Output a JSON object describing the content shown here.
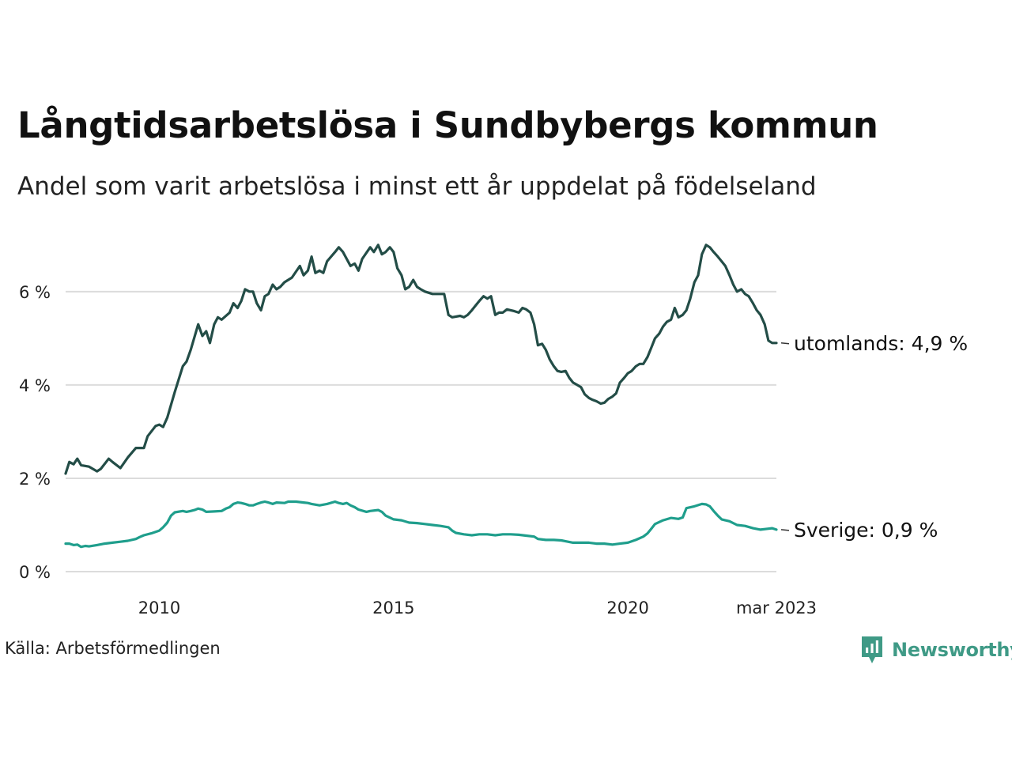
{
  "title": "Långtidsarbetslösa i Sundbybergs kommun",
  "subtitle": "Andel som varit arbetslösa i minst ett år uppdelat på födelseland",
  "source": "Källa: Arbetsförmedlingen",
  "brand": {
    "name": "Newsworthy",
    "logo_icon": "newsworthy-bar-chart-icon",
    "color": "#3f9a86"
  },
  "chart_data": {
    "type": "line",
    "x_unit": "year",
    "y_unit": "%",
    "ylim": [
      0,
      7.2
    ],
    "xlim": [
      2008.0,
      2023.17
    ],
    "y_ticks": [
      0,
      2,
      4,
      6
    ],
    "y_tick_labels": [
      "0 %",
      "2 %",
      "4 %",
      "6 %"
    ],
    "x_ticks": [
      2010,
      2015,
      2020,
      2023.17
    ],
    "x_tick_labels": [
      "2010",
      "2015",
      "2020",
      "mar 2023"
    ],
    "grid": "horizontal",
    "legend": "direct labels at line ends",
    "series": [
      {
        "name": "utomlands",
        "end_label": "utomlands: 4,9 %",
        "color": "#234d47",
        "points": [
          [
            2008.0,
            2.1
          ],
          [
            2008.08,
            2.35
          ],
          [
            2008.17,
            2.3
          ],
          [
            2008.25,
            2.42
          ],
          [
            2008.33,
            2.28
          ],
          [
            2008.5,
            2.25
          ],
          [
            2008.67,
            2.15
          ],
          [
            2008.75,
            2.2
          ],
          [
            2008.92,
            2.42
          ],
          [
            2009.0,
            2.35
          ],
          [
            2009.17,
            2.22
          ],
          [
            2009.33,
            2.45
          ],
          [
            2009.5,
            2.65
          ],
          [
            2009.67,
            2.65
          ],
          [
            2009.75,
            2.9
          ],
          [
            2009.92,
            3.12
          ],
          [
            2010.0,
            3.15
          ],
          [
            2010.08,
            3.1
          ],
          [
            2010.17,
            3.3
          ],
          [
            2010.33,
            3.85
          ],
          [
            2010.5,
            4.4
          ],
          [
            2010.58,
            4.5
          ],
          [
            2010.67,
            4.75
          ],
          [
            2010.83,
            5.3
          ],
          [
            2010.92,
            5.05
          ],
          [
            2011.0,
            5.15
          ],
          [
            2011.08,
            4.9
          ],
          [
            2011.17,
            5.3
          ],
          [
            2011.25,
            5.45
          ],
          [
            2011.33,
            5.4
          ],
          [
            2011.5,
            5.55
          ],
          [
            2011.58,
            5.75
          ],
          [
            2011.67,
            5.65
          ],
          [
            2011.75,
            5.8
          ],
          [
            2011.83,
            6.05
          ],
          [
            2011.92,
            6.0
          ],
          [
            2012.0,
            6.0
          ],
          [
            2012.08,
            5.75
          ],
          [
            2012.17,
            5.6
          ],
          [
            2012.25,
            5.9
          ],
          [
            2012.33,
            5.95
          ],
          [
            2012.42,
            6.15
          ],
          [
            2012.5,
            6.05
          ],
          [
            2012.58,
            6.1
          ],
          [
            2012.67,
            6.2
          ],
          [
            2012.83,
            6.3
          ],
          [
            2013.0,
            6.55
          ],
          [
            2013.08,
            6.35
          ],
          [
            2013.17,
            6.45
          ],
          [
            2013.25,
            6.75
          ],
          [
            2013.33,
            6.4
          ],
          [
            2013.42,
            6.45
          ],
          [
            2013.5,
            6.4
          ],
          [
            2013.58,
            6.65
          ],
          [
            2013.75,
            6.85
          ],
          [
            2013.83,
            6.95
          ],
          [
            2013.92,
            6.85
          ],
          [
            2014.08,
            6.55
          ],
          [
            2014.17,
            6.6
          ],
          [
            2014.25,
            6.45
          ],
          [
            2014.33,
            6.7
          ],
          [
            2014.5,
            6.95
          ],
          [
            2014.58,
            6.85
          ],
          [
            2014.67,
            7.0
          ],
          [
            2014.75,
            6.8
          ],
          [
            2014.83,
            6.85
          ],
          [
            2014.92,
            6.95
          ],
          [
            2015.0,
            6.85
          ],
          [
            2015.08,
            6.5
          ],
          [
            2015.17,
            6.35
          ],
          [
            2015.25,
            6.05
          ],
          [
            2015.33,
            6.1
          ],
          [
            2015.42,
            6.25
          ],
          [
            2015.5,
            6.1
          ],
          [
            2015.58,
            6.05
          ],
          [
            2015.67,
            6.0
          ],
          [
            2015.83,
            5.95
          ],
          [
            2016.0,
            5.95
          ],
          [
            2016.08,
            5.95
          ],
          [
            2016.17,
            5.5
          ],
          [
            2016.25,
            5.45
          ],
          [
            2016.42,
            5.48
          ],
          [
            2016.5,
            5.45
          ],
          [
            2016.58,
            5.5
          ],
          [
            2016.67,
            5.6
          ],
          [
            2016.75,
            5.7
          ],
          [
            2016.83,
            5.8
          ],
          [
            2016.92,
            5.9
          ],
          [
            2017.0,
            5.85
          ],
          [
            2017.08,
            5.9
          ],
          [
            2017.17,
            5.5
          ],
          [
            2017.25,
            5.55
          ],
          [
            2017.33,
            5.55
          ],
          [
            2017.42,
            5.62
          ],
          [
            2017.5,
            5.6
          ],
          [
            2017.58,
            5.58
          ],
          [
            2017.67,
            5.55
          ],
          [
            2017.75,
            5.65
          ],
          [
            2017.83,
            5.62
          ],
          [
            2017.92,
            5.55
          ],
          [
            2018.0,
            5.3
          ],
          [
            2018.08,
            4.85
          ],
          [
            2018.17,
            4.88
          ],
          [
            2018.25,
            4.75
          ],
          [
            2018.33,
            4.55
          ],
          [
            2018.42,
            4.4
          ],
          [
            2018.5,
            4.3
          ],
          [
            2018.58,
            4.28
          ],
          [
            2018.67,
            4.3
          ],
          [
            2018.75,
            4.15
          ],
          [
            2018.83,
            4.05
          ],
          [
            2018.92,
            4.0
          ],
          [
            2019.0,
            3.95
          ],
          [
            2019.08,
            3.8
          ],
          [
            2019.17,
            3.72
          ],
          [
            2019.25,
            3.68
          ],
          [
            2019.33,
            3.65
          ],
          [
            2019.42,
            3.6
          ],
          [
            2019.5,
            3.62
          ],
          [
            2019.58,
            3.7
          ],
          [
            2019.67,
            3.75
          ],
          [
            2019.75,
            3.82
          ],
          [
            2019.83,
            4.05
          ],
          [
            2019.92,
            4.15
          ],
          [
            2020.0,
            4.25
          ],
          [
            2020.08,
            4.3
          ],
          [
            2020.17,
            4.4
          ],
          [
            2020.25,
            4.45
          ],
          [
            2020.33,
            4.45
          ],
          [
            2020.42,
            4.6
          ],
          [
            2020.5,
            4.8
          ],
          [
            2020.58,
            5.0
          ],
          [
            2020.67,
            5.1
          ],
          [
            2020.75,
            5.25
          ],
          [
            2020.83,
            5.35
          ],
          [
            2020.92,
            5.4
          ],
          [
            2021.0,
            5.65
          ],
          [
            2021.08,
            5.45
          ],
          [
            2021.17,
            5.5
          ],
          [
            2021.25,
            5.6
          ],
          [
            2021.33,
            5.85
          ],
          [
            2021.42,
            6.2
          ],
          [
            2021.5,
            6.35
          ],
          [
            2021.58,
            6.8
          ],
          [
            2021.67,
            7.0
          ],
          [
            2021.75,
            6.95
          ],
          [
            2021.83,
            6.85
          ],
          [
            2021.92,
            6.75
          ],
          [
            2022.0,
            6.65
          ],
          [
            2022.08,
            6.55
          ],
          [
            2022.17,
            6.35
          ],
          [
            2022.25,
            6.15
          ],
          [
            2022.33,
            6.0
          ],
          [
            2022.42,
            6.05
          ],
          [
            2022.5,
            5.95
          ],
          [
            2022.58,
            5.9
          ],
          [
            2022.67,
            5.75
          ],
          [
            2022.75,
            5.6
          ],
          [
            2022.83,
            5.5
          ],
          [
            2022.92,
            5.3
          ],
          [
            2023.0,
            4.95
          ],
          [
            2023.08,
            4.9
          ],
          [
            2023.17,
            4.9
          ]
        ]
      },
      {
        "name": "Sverige",
        "end_label": "Sverige: 0,9 %",
        "color": "#1f9e8c",
        "points": [
          [
            2008.0,
            0.6
          ],
          [
            2008.08,
            0.6
          ],
          [
            2008.17,
            0.57
          ],
          [
            2008.25,
            0.58
          ],
          [
            2008.33,
            0.53
          ],
          [
            2008.42,
            0.55
          ],
          [
            2008.5,
            0.54
          ],
          [
            2008.67,
            0.57
          ],
          [
            2008.83,
            0.6
          ],
          [
            2009.0,
            0.62
          ],
          [
            2009.17,
            0.64
          ],
          [
            2009.33,
            0.66
          ],
          [
            2009.5,
            0.7
          ],
          [
            2009.58,
            0.74
          ],
          [
            2009.67,
            0.78
          ],
          [
            2009.83,
            0.82
          ],
          [
            2010.0,
            0.88
          ],
          [
            2010.08,
            0.95
          ],
          [
            2010.17,
            1.05
          ],
          [
            2010.25,
            1.2
          ],
          [
            2010.33,
            1.27
          ],
          [
            2010.5,
            1.3
          ],
          [
            2010.58,
            1.28
          ],
          [
            2010.67,
            1.3
          ],
          [
            2010.75,
            1.32
          ],
          [
            2010.83,
            1.35
          ],
          [
            2010.92,
            1.33
          ],
          [
            2011.0,
            1.28
          ],
          [
            2011.17,
            1.29
          ],
          [
            2011.33,
            1.3
          ],
          [
            2011.42,
            1.35
          ],
          [
            2011.5,
            1.38
          ],
          [
            2011.58,
            1.45
          ],
          [
            2011.67,
            1.48
          ],
          [
            2011.75,
            1.47
          ],
          [
            2011.83,
            1.45
          ],
          [
            2011.92,
            1.42
          ],
          [
            2012.0,
            1.42
          ],
          [
            2012.08,
            1.45
          ],
          [
            2012.17,
            1.48
          ],
          [
            2012.25,
            1.5
          ],
          [
            2012.33,
            1.48
          ],
          [
            2012.42,
            1.45
          ],
          [
            2012.5,
            1.48
          ],
          [
            2012.67,
            1.47
          ],
          [
            2012.75,
            1.5
          ],
          [
            2012.92,
            1.5
          ],
          [
            2013.08,
            1.48
          ],
          [
            2013.17,
            1.47
          ],
          [
            2013.25,
            1.45
          ],
          [
            2013.42,
            1.42
          ],
          [
            2013.58,
            1.45
          ],
          [
            2013.75,
            1.5
          ],
          [
            2013.83,
            1.47
          ],
          [
            2013.92,
            1.45
          ],
          [
            2014.0,
            1.47
          ],
          [
            2014.08,
            1.42
          ],
          [
            2014.17,
            1.38
          ],
          [
            2014.25,
            1.33
          ],
          [
            2014.42,
            1.28
          ],
          [
            2014.5,
            1.3
          ],
          [
            2014.67,
            1.32
          ],
          [
            2014.75,
            1.28
          ],
          [
            2014.83,
            1.2
          ],
          [
            2015.0,
            1.12
          ],
          [
            2015.17,
            1.1
          ],
          [
            2015.33,
            1.05
          ],
          [
            2015.5,
            1.04
          ],
          [
            2015.67,
            1.02
          ],
          [
            2015.83,
            1.0
          ],
          [
            2016.0,
            0.98
          ],
          [
            2016.17,
            0.95
          ],
          [
            2016.25,
            0.88
          ],
          [
            2016.33,
            0.83
          ],
          [
            2016.5,
            0.8
          ],
          [
            2016.67,
            0.78
          ],
          [
            2016.83,
            0.8
          ],
          [
            2017.0,
            0.8
          ],
          [
            2017.17,
            0.78
          ],
          [
            2017.33,
            0.8
          ],
          [
            2017.5,
            0.8
          ],
          [
            2017.67,
            0.79
          ],
          [
            2017.83,
            0.77
          ],
          [
            2018.0,
            0.75
          ],
          [
            2018.08,
            0.7
          ],
          [
            2018.25,
            0.68
          ],
          [
            2018.42,
            0.68
          ],
          [
            2018.58,
            0.67
          ],
          [
            2018.67,
            0.65
          ],
          [
            2018.83,
            0.62
          ],
          [
            2019.0,
            0.62
          ],
          [
            2019.17,
            0.62
          ],
          [
            2019.33,
            0.6
          ],
          [
            2019.5,
            0.6
          ],
          [
            2019.67,
            0.58
          ],
          [
            2019.83,
            0.6
          ],
          [
            2020.0,
            0.62
          ],
          [
            2020.17,
            0.68
          ],
          [
            2020.33,
            0.75
          ],
          [
            2020.42,
            0.82
          ],
          [
            2020.5,
            0.92
          ],
          [
            2020.58,
            1.02
          ],
          [
            2020.75,
            1.1
          ],
          [
            2020.92,
            1.15
          ],
          [
            2021.08,
            1.13
          ],
          [
            2021.17,
            1.16
          ],
          [
            2021.25,
            1.36
          ],
          [
            2021.42,
            1.4
          ],
          [
            2021.58,
            1.45
          ],
          [
            2021.67,
            1.44
          ],
          [
            2021.75,
            1.4
          ],
          [
            2021.83,
            1.3
          ],
          [
            2021.92,
            1.2
          ],
          [
            2022.0,
            1.12
          ],
          [
            2022.08,
            1.1
          ],
          [
            2022.17,
            1.08
          ],
          [
            2022.33,
            1.0
          ],
          [
            2022.5,
            0.98
          ],
          [
            2022.67,
            0.93
          ],
          [
            2022.83,
            0.9
          ],
          [
            2023.0,
            0.92
          ],
          [
            2023.08,
            0.93
          ],
          [
            2023.17,
            0.9
          ]
        ]
      }
    ]
  }
}
